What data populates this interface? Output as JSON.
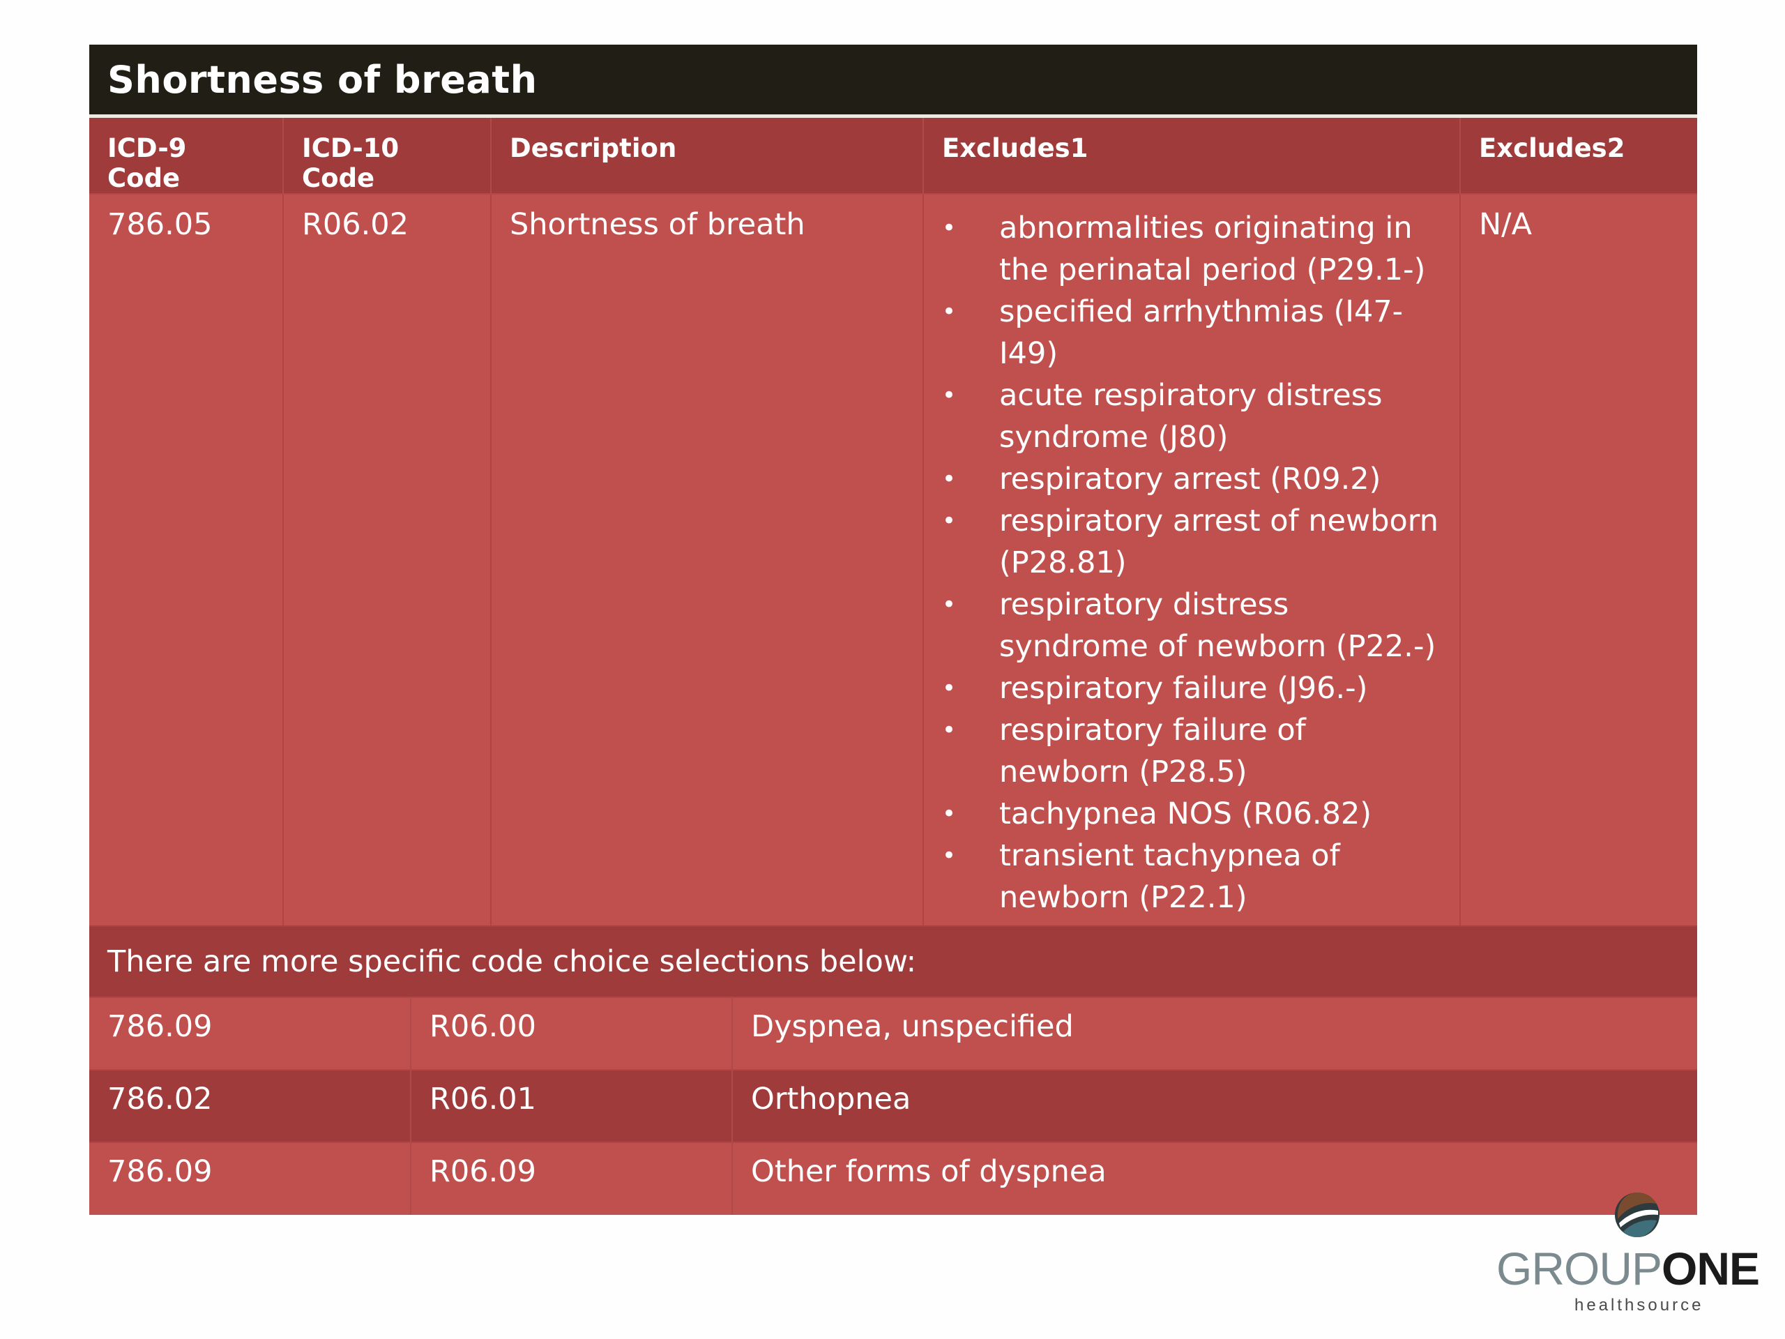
{
  "title": "Shortness of breath",
  "main_table": {
    "headers": [
      "ICD-9 Code",
      "ICD-10 Code",
      "Description",
      "Excludes1",
      "Excludes2"
    ],
    "row": {
      "icd9": "786.05",
      "icd10": "R06.02",
      "description": "Shortness of breath",
      "excludes1": [
        "abnormalities originating in the perinatal period (P29.1-)",
        "specified arrhythmias (I47-I49)",
        "acute respiratory distress syndrome (J80)",
        "respiratory arrest (R09.2)",
        "respiratory arrest of newborn (P28.81)",
        "respiratory distress syndrome of newborn (P22.-)",
        "respiratory failure (J96.-)",
        "respiratory failure of newborn (P28.5)",
        "tachypnea NOS (R06.82)",
        "transient tachypnea of newborn (P22.1)"
      ],
      "excludes2": "N/A"
    }
  },
  "note": "There are more specific code choice selections below:",
  "sub_rows": [
    {
      "icd9": "786.09",
      "icd10": "R06.00",
      "description": "Dyspnea, unspecified"
    },
    {
      "icd9": "786.02",
      "icd10": "R06.01",
      "description": "Orthopnea"
    },
    {
      "icd9": "786.09",
      "icd10": "R06.09",
      "description": "Other forms of dyspnea"
    }
  ],
  "logo": {
    "word_light": "GROUP",
    "word_bold": "ONE",
    "tagline": "healthsource"
  },
  "colors": {
    "title_bar": "#201e15",
    "header_dark_red": "#9f3b3b",
    "cell_red": "#c0504e"
  }
}
